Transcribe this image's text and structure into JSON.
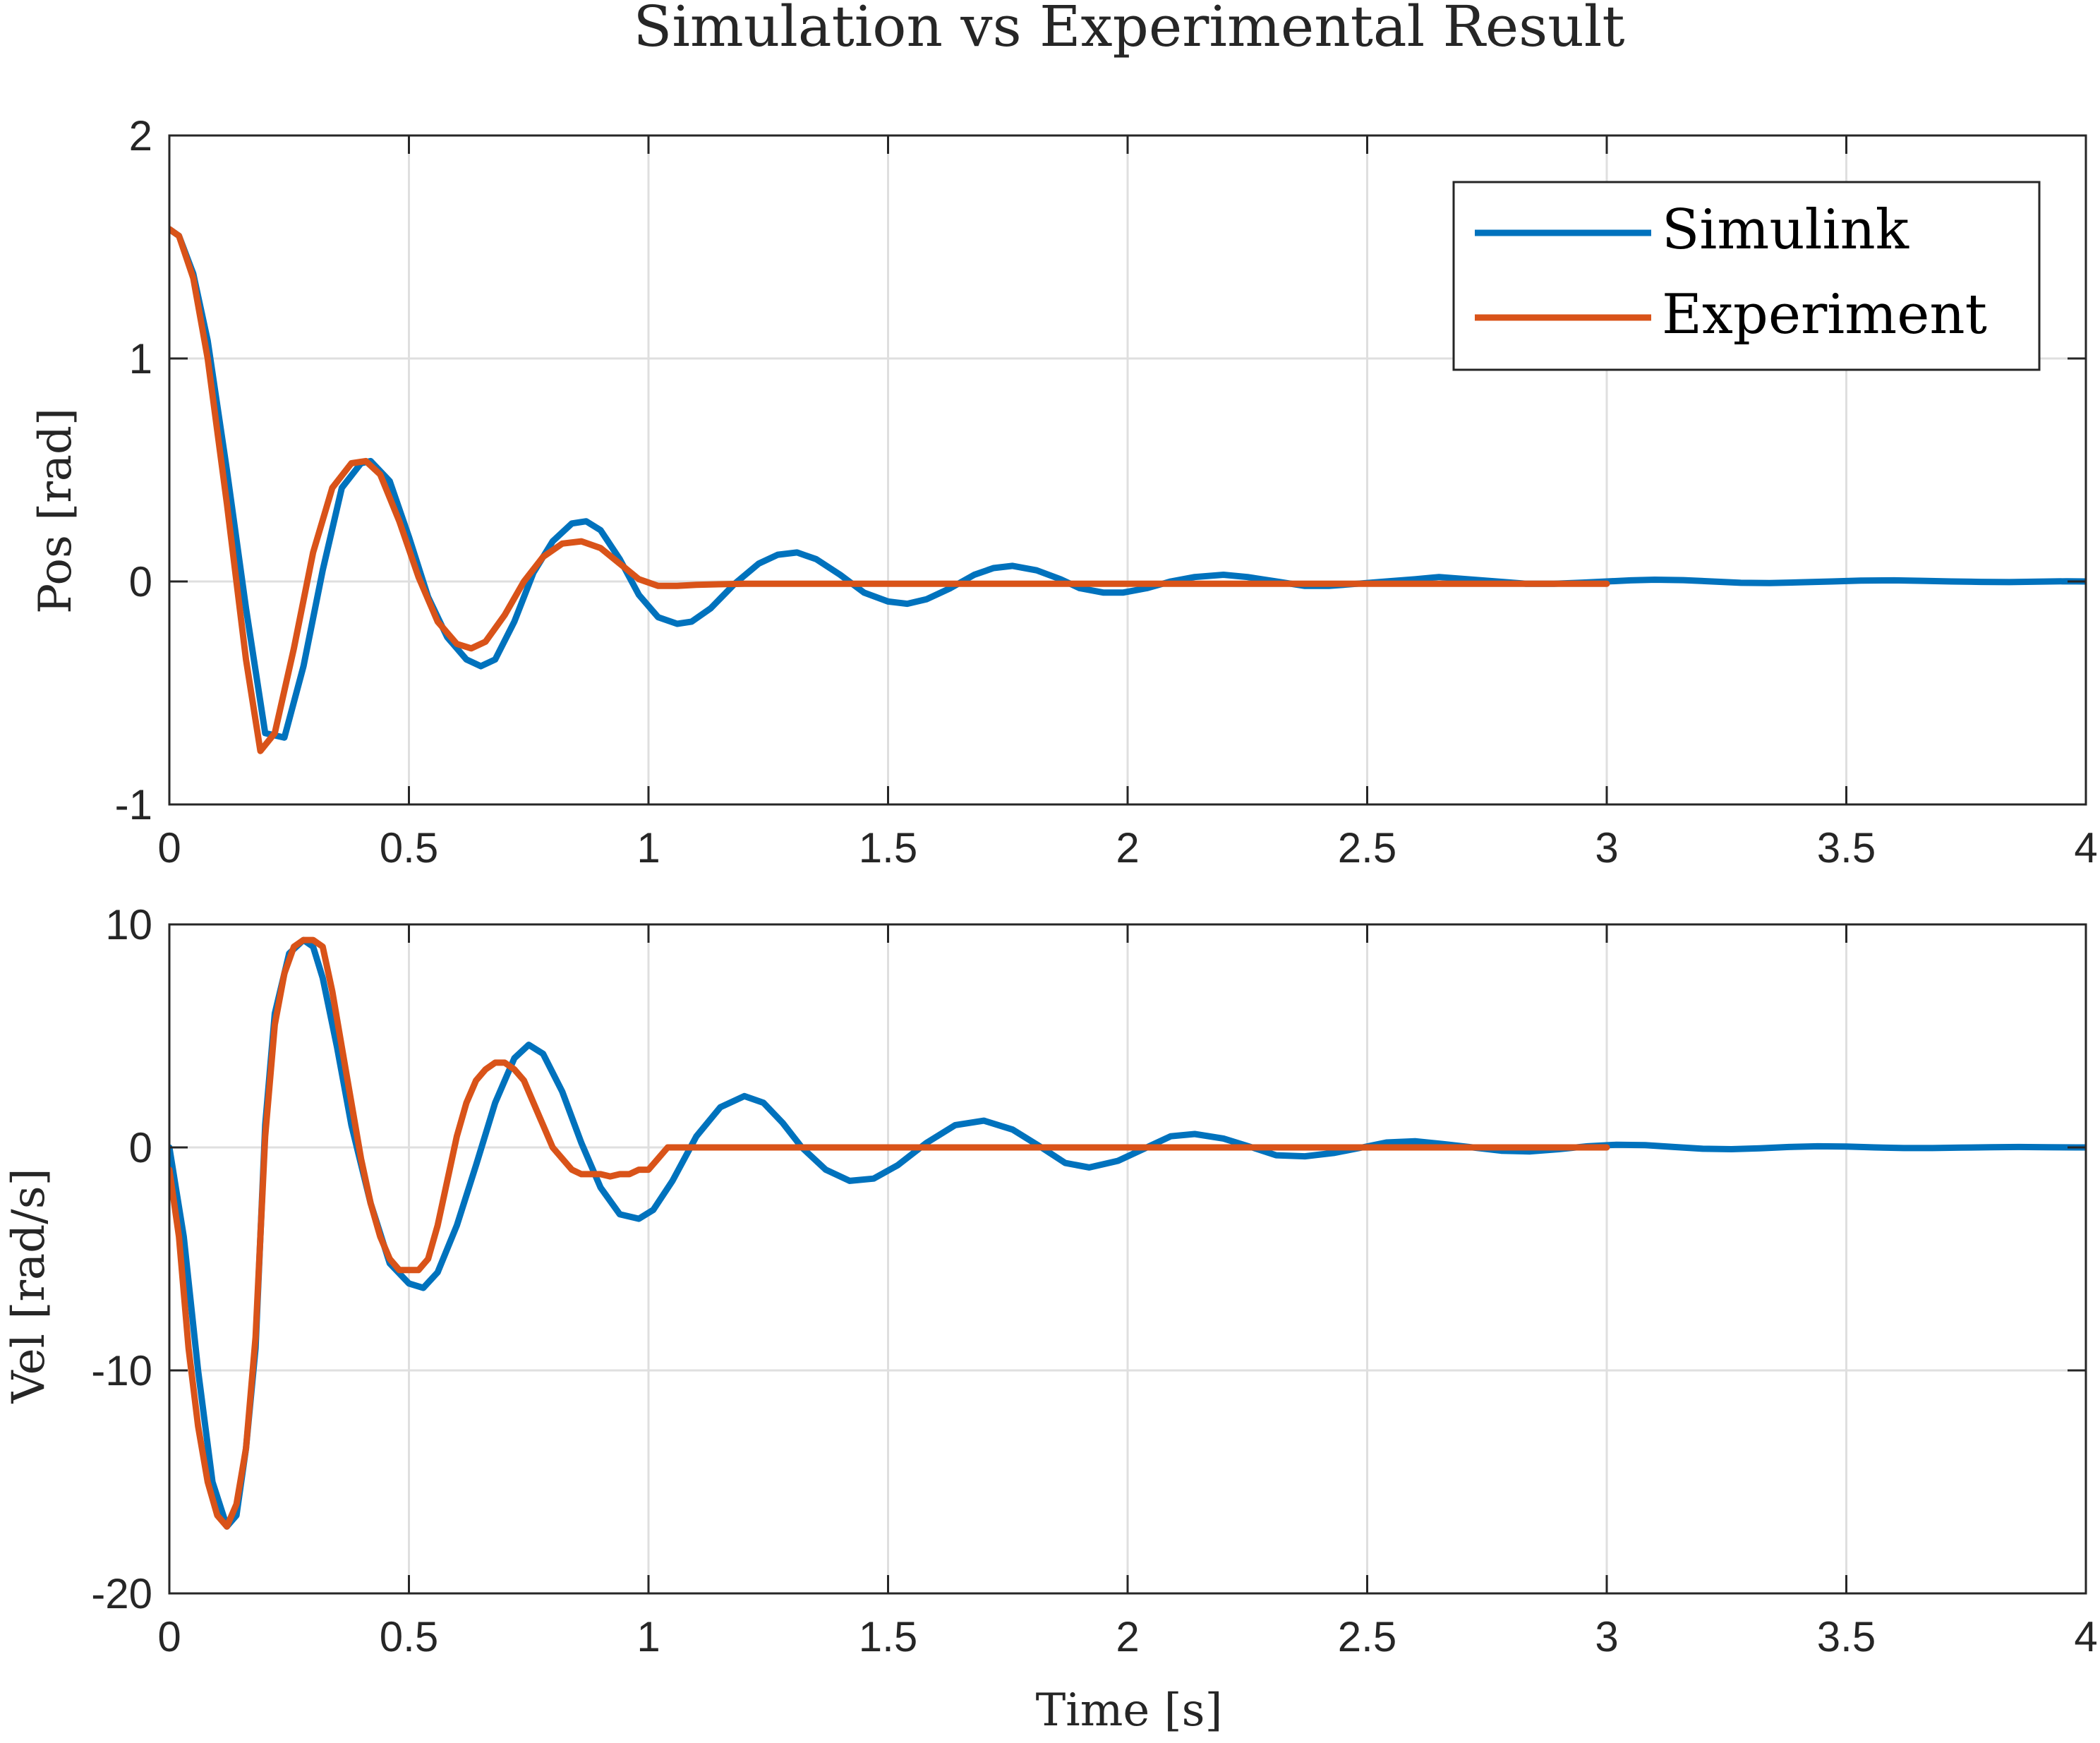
{
  "chart_data": {
    "type": "line",
    "title": "Simulation vs Experimental Result",
    "xlabel": "Time [s]",
    "legend": {
      "placement": "top-right of upper subplot",
      "entries": [
        "Simulink",
        "Experiment"
      ]
    },
    "colors": {
      "Simulink": "#0072BD",
      "Experiment": "#D95319"
    },
    "grid": true,
    "subplots": [
      {
        "id": "position",
        "ylabel": "Pos [rad]",
        "xlim": [
          0,
          4
        ],
        "ylim": [
          -1,
          2
        ],
        "xticks": [
          "0",
          "0.5",
          "1",
          "1.5",
          "2",
          "2.5",
          "3",
          "3.5",
          "4"
        ],
        "yticks": [
          "-1",
          "0",
          "1",
          "2"
        ],
        "series": [
          {
            "name": "Simulink",
            "x": [
              0,
              0.02,
              0.05,
              0.08,
              0.12,
              0.16,
              0.2,
              0.24,
              0.28,
              0.32,
              0.36,
              0.4,
              0.42,
              0.46,
              0.5,
              0.54,
              0.58,
              0.62,
              0.65,
              0.68,
              0.72,
              0.76,
              0.8,
              0.84,
              0.87,
              0.9,
              0.94,
              0.98,
              1.02,
              1.06,
              1.09,
              1.13,
              1.18,
              1.23,
              1.27,
              1.31,
              1.35,
              1.4,
              1.45,
              1.5,
              1.54,
              1.58,
              1.63,
              1.68,
              1.72,
              1.76,
              1.81,
              1.86,
              1.9,
              1.95,
              1.99,
              2.04,
              2.09,
              2.14,
              2.2,
              2.25,
              2.31,
              2.37,
              2.42,
              2.48,
              2.54,
              2.6,
              2.65,
              2.71,
              2.77,
              2.83,
              2.89,
              2.95,
              3.0,
              3.05,
              3.1,
              3.16,
              3.22,
              3.28,
              3.34,
              3.4,
              3.47,
              3.53,
              3.6,
              3.66,
              3.72,
              3.78,
              3.84,
              3.9,
              3.96,
              4.0
            ],
            "y": [
              1.58,
              1.55,
              1.38,
              1.08,
              0.5,
              -0.12,
              -0.68,
              -0.7,
              -0.38,
              0.05,
              0.42,
              0.53,
              0.54,
              0.45,
              0.2,
              -0.07,
              -0.25,
              -0.35,
              -0.38,
              -0.35,
              -0.18,
              0.04,
              0.18,
              0.26,
              0.27,
              0.23,
              0.1,
              -0.06,
              -0.16,
              -0.19,
              -0.18,
              -0.12,
              -0.01,
              0.08,
              0.12,
              0.13,
              0.1,
              0.03,
              -0.05,
              -0.09,
              -0.1,
              -0.08,
              -0.03,
              0.03,
              0.06,
              0.07,
              0.05,
              0.01,
              -0.03,
              -0.05,
              -0.05,
              -0.03,
              0.0,
              0.02,
              0.03,
              0.02,
              0.0,
              -0.02,
              -0.02,
              -0.01,
              0.0,
              0.01,
              0.02,
              0.01,
              0.0,
              -0.01,
              -0.01,
              -0.005,
              0.0,
              0.005,
              0.008,
              0.006,
              0.0,
              -0.006,
              -0.007,
              -0.004,
              0.0,
              0.004,
              0.005,
              0.003,
              0.0,
              -0.002,
              -0.003,
              -0.001,
              0.001,
              0.0
            ]
          },
          {
            "name": "Experiment",
            "x": [
              0,
              0.02,
              0.05,
              0.08,
              0.12,
              0.16,
              0.19,
              0.22,
              0.26,
              0.3,
              0.34,
              0.38,
              0.41,
              0.44,
              0.48,
              0.52,
              0.56,
              0.6,
              0.63,
              0.66,
              0.7,
              0.74,
              0.78,
              0.82,
              0.86,
              0.9,
              0.94,
              0.98,
              1.02,
              1.06,
              1.1,
              1.2,
              1.4,
              1.6,
              2.0,
              2.5,
              3.0
            ],
            "y": [
              1.58,
              1.55,
              1.36,
              1.0,
              0.35,
              -0.35,
              -0.76,
              -0.68,
              -0.3,
              0.13,
              0.42,
              0.53,
              0.54,
              0.48,
              0.27,
              0.02,
              -0.18,
              -0.28,
              -0.3,
              -0.27,
              -0.15,
              0.0,
              0.11,
              0.17,
              0.18,
              0.15,
              0.08,
              0.01,
              -0.02,
              -0.02,
              -0.015,
              -0.01,
              -0.01,
              -0.01,
              -0.01,
              -0.01,
              -0.01
            ]
          }
        ]
      },
      {
        "id": "velocity",
        "ylabel": "Vel [rad/s]",
        "xlabel": "Time [s]",
        "xlim": [
          0,
          4
        ],
        "ylim": [
          -20,
          10
        ],
        "xticks": [
          "0",
          "0.5",
          "1",
          "1.5",
          "2",
          "2.5",
          "3",
          "3.5",
          "4"
        ],
        "yticks": [
          "-20",
          "-10",
          "0",
          "10"
        ],
        "series": [
          {
            "name": "Simulink",
            "x": [
              0,
              0.03,
              0.06,
              0.09,
              0.12,
              0.14,
              0.16,
              0.18,
              0.2,
              0.22,
              0.25,
              0.28,
              0.3,
              0.32,
              0.35,
              0.38,
              0.42,
              0.46,
              0.5,
              0.53,
              0.56,
              0.6,
              0.64,
              0.68,
              0.72,
              0.75,
              0.78,
              0.82,
              0.86,
              0.9,
              0.94,
              0.98,
              1.01,
              1.05,
              1.1,
              1.15,
              1.2,
              1.24,
              1.28,
              1.32,
              1.37,
              1.42,
              1.47,
              1.52,
              1.58,
              1.64,
              1.7,
              1.76,
              1.82,
              1.87,
              1.92,
              1.98,
              2.04,
              2.09,
              2.14,
              2.2,
              2.26,
              2.31,
              2.37,
              2.43,
              2.49,
              2.54,
              2.6,
              2.66,
              2.72,
              2.78,
              2.84,
              2.9,
              2.96,
              3.02,
              3.08,
              3.14,
              3.2,
              3.26,
              3.32,
              3.38,
              3.44,
              3.5,
              3.56,
              3.62,
              3.68,
              3.74,
              3.8,
              3.86,
              3.92,
              3.98,
              4.0
            ],
            "y": [
              0,
              -4,
              -10,
              -15,
              -17,
              -16.5,
              -13.5,
              -9,
              1,
              6,
              8.7,
              9.3,
              9,
              7.6,
              4.5,
              1.0,
              -2.5,
              -5.2,
              -6.1,
              -6.3,
              -5.6,
              -3.5,
              -0.8,
              2.0,
              4.0,
              4.6,
              4.2,
              2.5,
              0.2,
              -1.8,
              -3.0,
              -3.2,
              -2.8,
              -1.5,
              0.5,
              1.8,
              2.3,
              2.0,
              1.1,
              0,
              -1.0,
              -1.5,
              -1.4,
              -0.8,
              0.2,
              1.0,
              1.2,
              0.8,
              0,
              -0.7,
              -0.9,
              -0.6,
              0.0,
              0.5,
              0.6,
              0.4,
              0,
              -0.35,
              -0.4,
              -0.25,
              0.0,
              0.22,
              0.28,
              0.15,
              0,
              -0.15,
              -0.18,
              -0.08,
              0.05,
              0.12,
              0.1,
              0.02,
              -0.06,
              -0.08,
              -0.04,
              0.02,
              0.05,
              0.04,
              0.0,
              -0.03,
              -0.03,
              -0.01,
              0.01,
              0.02,
              0.01,
              0.0,
              0.0
            ]
          },
          {
            "name": "Experiment",
            "x": [
              0,
              0.02,
              0.04,
              0.06,
              0.08,
              0.1,
              0.12,
              0.14,
              0.16,
              0.18,
              0.2,
              0.22,
              0.24,
              0.26,
              0.28,
              0.3,
              0.32,
              0.34,
              0.36,
              0.38,
              0.4,
              0.42,
              0.44,
              0.46,
              0.48,
              0.5,
              0.52,
              0.54,
              0.56,
              0.58,
              0.6,
              0.62,
              0.64,
              0.66,
              0.68,
              0.7,
              0.72,
              0.74,
              0.76,
              0.78,
              0.8,
              0.82,
              0.84,
              0.86,
              0.88,
              0.9,
              0.92,
              0.94,
              0.96,
              0.98,
              1.0,
              1.02,
              1.04,
              1.06,
              1.08,
              1.1,
              1.15,
              1.2,
              1.25,
              1.3,
              1.5,
              2.0,
              2.5,
              3.0
            ],
            "y": [
              -1,
              -4,
              -9,
              -12.5,
              -15,
              -16.5,
              -17,
              -16,
              -13.5,
              -8.5,
              0.5,
              5.5,
              7.8,
              9.0,
              9.3,
              9.3,
              9.0,
              7.0,
              4.5,
              2.0,
              -0.5,
              -2.5,
              -4.0,
              -5.0,
              -5.5,
              -5.5,
              -5.5,
              -5.0,
              -3.5,
              -1.5,
              0.5,
              2.0,
              3.0,
              3.5,
              3.8,
              3.8,
              3.5,
              3.0,
              2.0,
              1.0,
              0.0,
              -0.5,
              -1.0,
              -1.2,
              -1.2,
              -1.2,
              -1.3,
              -1.2,
              -1.2,
              -1.0,
              -1.0,
              -0.5,
              0.0,
              0.0,
              0.0,
              0.0,
              0.0,
              0.0,
              0.0,
              0.0,
              0.0,
              0.0,
              0.0,
              0.0
            ]
          }
        ]
      }
    ]
  }
}
